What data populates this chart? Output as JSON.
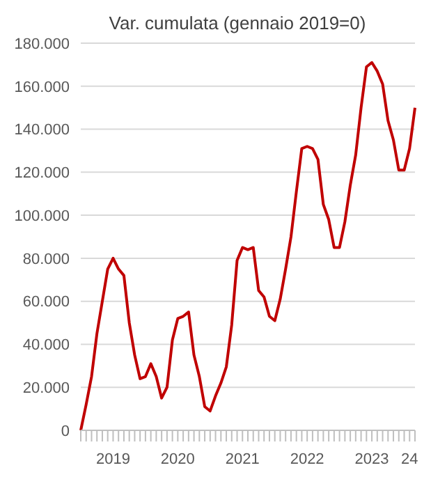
{
  "chart_data": {
    "type": "line",
    "title": "Var. cumulata (gennaio 2019=0)",
    "categories": [
      null,
      null,
      null,
      null,
      null,
      null,
      "2019",
      null,
      null,
      null,
      null,
      null,
      null,
      null,
      null,
      null,
      null,
      null,
      "2020",
      null,
      null,
      null,
      null,
      null,
      null,
      null,
      null,
      null,
      null,
      null,
      "2021",
      null,
      null,
      null,
      null,
      null,
      null,
      null,
      null,
      null,
      null,
      null,
      "2022",
      null,
      null,
      null,
      null,
      null,
      null,
      null,
      null,
      null,
      null,
      null,
      "2023",
      null,
      null,
      null,
      null,
      null,
      null,
      "24",
      null
    ],
    "series": [
      {
        "color": "#c00000",
        "values": [
          0,
          12000,
          25000,
          45000,
          60000,
          75000,
          80000,
          75000,
          72000,
          50000,
          35000,
          24000,
          25000,
          31000,
          25000,
          15000,
          20000,
          42000,
          52000,
          53000,
          55000,
          35000,
          25000,
          11000,
          9000,
          16000,
          22000,
          29500,
          49000,
          79000,
          85000,
          84000,
          85000,
          65000,
          62000,
          53000,
          51000,
          61000,
          75000,
          90000,
          111000,
          131000,
          132000,
          131000,
          126000,
          105000,
          98000,
          85000,
          85000,
          97000,
          114000,
          128000,
          150000,
          169000,
          171000,
          167000,
          161000,
          144000,
          135000,
          121000,
          121000,
          131000,
          150000
        ]
      }
    ],
    "ylim": [
      0,
      180000
    ],
    "yticks": [
      {
        "value": 0,
        "label": "0"
      },
      {
        "value": 20000,
        "label": "20.000"
      },
      {
        "value": 40000,
        "label": "40.000"
      },
      {
        "value": 60000,
        "label": "60.000"
      },
      {
        "value": 80000,
        "label": "80.000"
      },
      {
        "value": 100000,
        "label": "100.000"
      },
      {
        "value": 120000,
        "label": "120.000"
      },
      {
        "value": 140000,
        "label": "140.000"
      },
      {
        "value": 160000,
        "label": "160.000"
      },
      {
        "value": 180000,
        "label": "180.000"
      }
    ],
    "grid": "y",
    "legend": false,
    "marker": "none",
    "line_style": "solid"
  }
}
